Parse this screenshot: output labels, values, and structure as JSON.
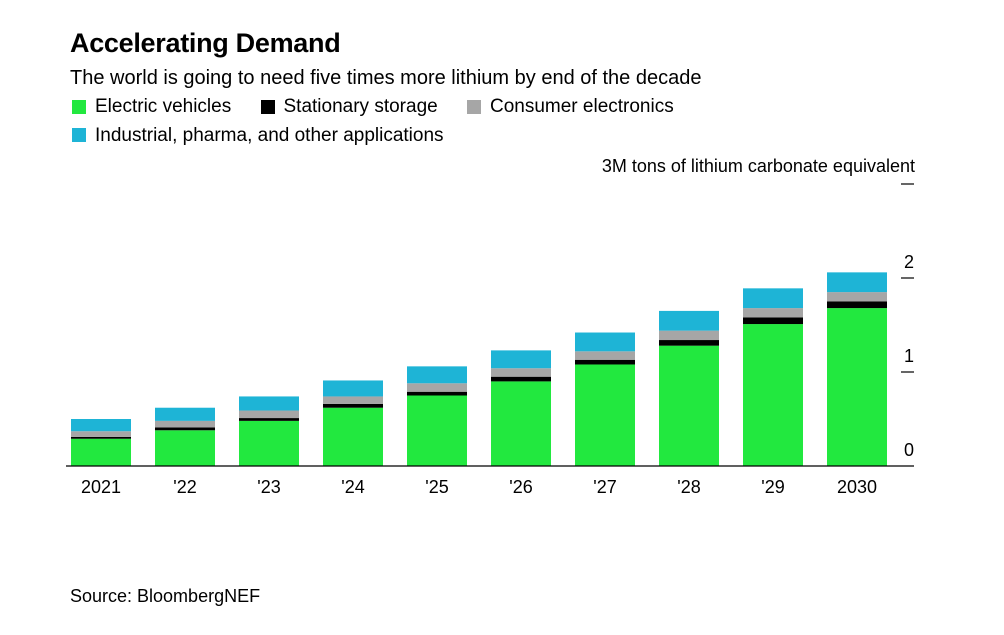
{
  "header": {
    "title": "Accelerating Demand",
    "subtitle": "The world is going to need five times more lithium by end of the decade"
  },
  "legend": [
    {
      "label": "Electric vehicles",
      "color": "#22e83f"
    },
    {
      "label": "Stationary storage",
      "color": "#000000"
    },
    {
      "label": "Consumer electronics",
      "color": "#a6a6a6"
    },
    {
      "label": "Industrial, pharma, and other applications",
      "color": "#1eb4d6"
    }
  ],
  "source": "Source: BloombergNEF",
  "chart_data": {
    "type": "bar",
    "stacked": true,
    "categories": [
      "2021",
      "'22",
      "'23",
      "'24",
      "'25",
      "'26",
      "'27",
      "'28",
      "'29",
      "2030"
    ],
    "series": [
      {
        "name": "Electric vehicles",
        "color": "#22e83f",
        "values": [
          0.29,
          0.38,
          0.48,
          0.62,
          0.75,
          0.9,
          1.08,
          1.28,
          1.51,
          1.68
        ]
      },
      {
        "name": "Stationary storage",
        "color": "#000000",
        "values": [
          0.02,
          0.03,
          0.03,
          0.04,
          0.04,
          0.05,
          0.05,
          0.06,
          0.07,
          0.07
        ]
      },
      {
        "name": "Consumer electronics",
        "color": "#a6a6a6",
        "values": [
          0.06,
          0.07,
          0.08,
          0.08,
          0.09,
          0.09,
          0.09,
          0.1,
          0.1,
          0.1
        ]
      },
      {
        "name": "Industrial, pharma, and other applications",
        "color": "#1eb4d6",
        "values": [
          0.13,
          0.14,
          0.15,
          0.17,
          0.18,
          0.19,
          0.2,
          0.21,
          0.21,
          0.21
        ]
      }
    ],
    "ylabel": "3M tons of lithium carbonate equivalent",
    "yticks": [
      "0",
      "1",
      "2"
    ],
    "ylim": [
      0,
      3
    ],
    "grid": false,
    "legend_position": "top-left"
  }
}
